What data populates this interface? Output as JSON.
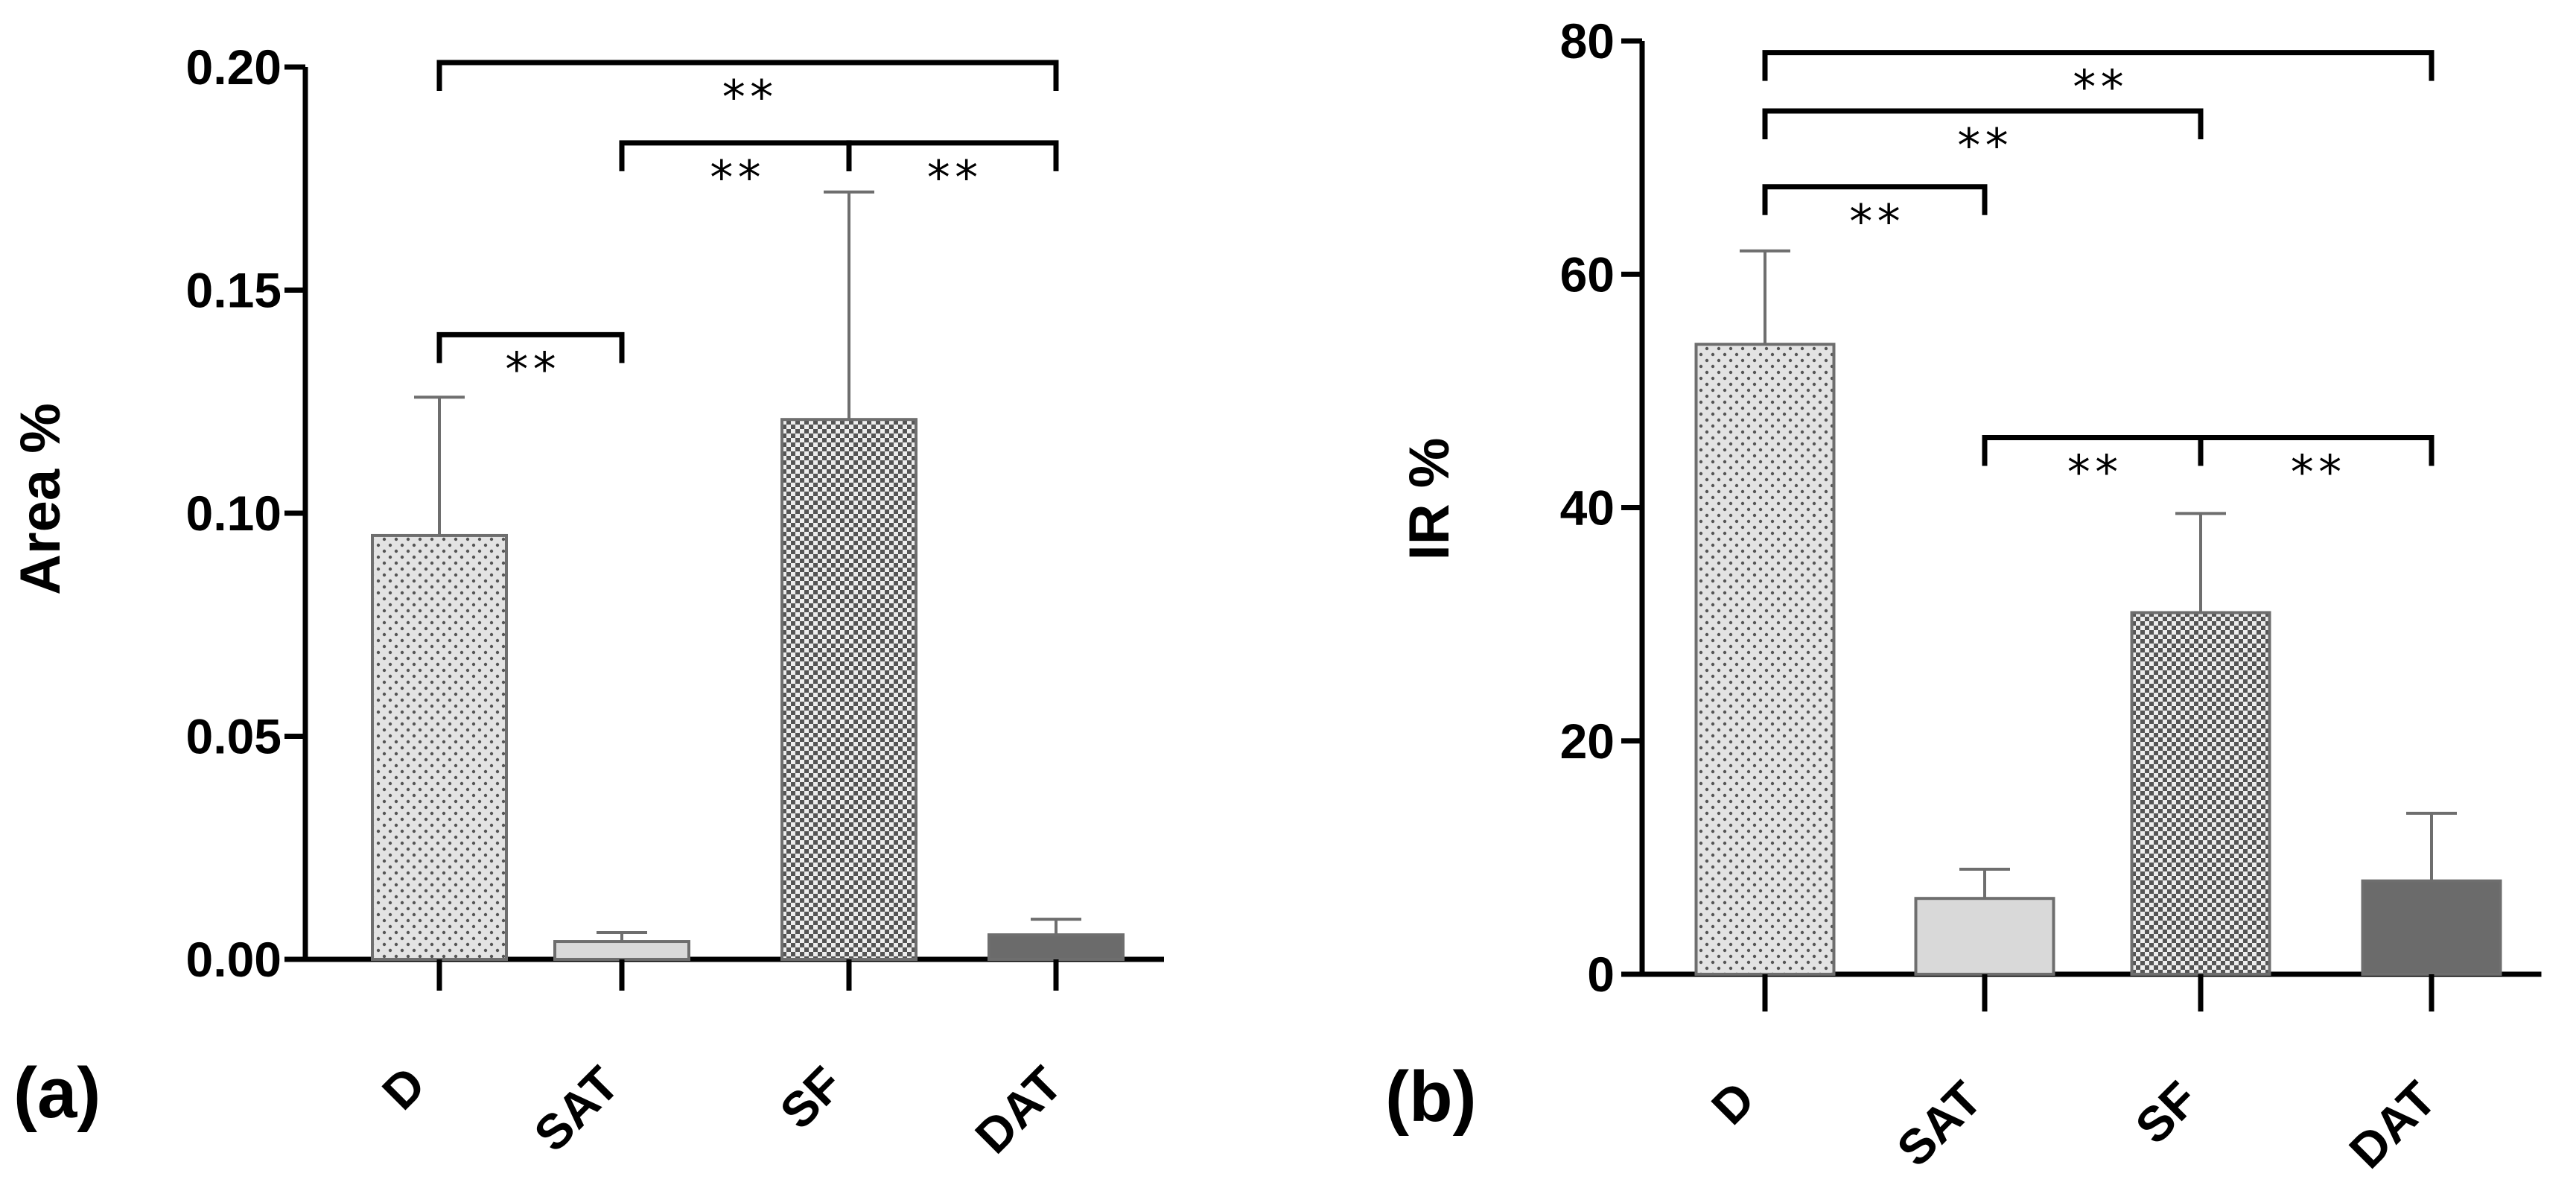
{
  "chart_data": [
    {
      "type": "bar",
      "panel_label": "(a)",
      "ylabel": "Area %",
      "ylim": [
        0,
        0.2
      ],
      "yticks": [
        0,
        0.05,
        0.1,
        0.15,
        0.2
      ],
      "ytick_labels": [
        "0.00",
        "0.05",
        "0.10",
        "0.15",
        "0.20"
      ],
      "categories": [
        "D",
        "SAT",
        "SF",
        "DAT"
      ],
      "values": [
        0.095,
        0.004,
        0.121,
        0.0055
      ],
      "errors": [
        0.031,
        0.002,
        0.051,
        0.0035
      ],
      "fills": [
        "dots",
        "light",
        "checker",
        "dark"
      ],
      "colors": {
        "light": "#d9d9d9",
        "dark": "#6b6b6b"
      },
      "significance": [
        {
          "from": 0,
          "to": 3,
          "y": 0.201,
          "label": "**"
        },
        {
          "from": 1,
          "to": 2,
          "y": 0.183,
          "label": "**"
        },
        {
          "from": 2,
          "to": 3,
          "y": 0.183,
          "label": "**"
        },
        {
          "from": 0,
          "to": 1,
          "y": 0.14,
          "label": "**"
        }
      ]
    },
    {
      "type": "bar",
      "panel_label": "(b)",
      "ylabel": "IR %",
      "ylim": [
        0,
        80
      ],
      "yticks": [
        0,
        20,
        40,
        60,
        80
      ],
      "ytick_labels": [
        "0",
        "20",
        "40",
        "60",
        "80"
      ],
      "categories": [
        "D",
        "SAT",
        "SF",
        "DAT"
      ],
      "values": [
        54,
        6.5,
        31,
        8
      ],
      "errors": [
        8,
        2.5,
        8.5,
        5.8
      ],
      "fills": [
        "dots",
        "light",
        "checker",
        "dark"
      ],
      "colors": {
        "light": "#d9d9d9",
        "dark": "#6b6b6b"
      },
      "significance": [
        {
          "from": 0,
          "to": 3,
          "y": 79,
          "label": "**"
        },
        {
          "from": 0,
          "to": 2,
          "y": 74,
          "label": "**"
        },
        {
          "from": 0,
          "to": 1,
          "y": 67.5,
          "label": "**"
        },
        {
          "from": 1,
          "to": 2,
          "y": 46,
          "label": "**"
        },
        {
          "from": 2,
          "to": 3,
          "y": 46,
          "label": "**"
        }
      ]
    }
  ]
}
